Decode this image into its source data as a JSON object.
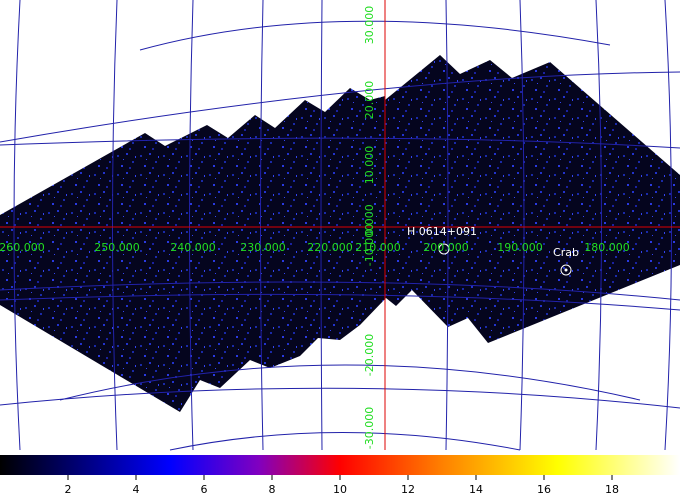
{
  "map": {
    "longitude_labels": [
      "260.000",
      "250.000",
      "240.000",
      "230.000",
      "220.000",
      "210.000",
      "200.000",
      "190.000",
      "180.000"
    ],
    "latitude_labels": [
      "30.000",
      "20.000",
      "10.000",
      "0.000",
      "-10.000",
      "-20.000",
      "-30.000"
    ],
    "sources": [
      "H 0614+091",
      "Crab"
    ]
  },
  "colorbar": {
    "lim": [
      0,
      20
    ],
    "ticks": [
      2,
      4,
      6,
      8,
      10,
      12,
      14,
      16,
      18
    ]
  }
}
